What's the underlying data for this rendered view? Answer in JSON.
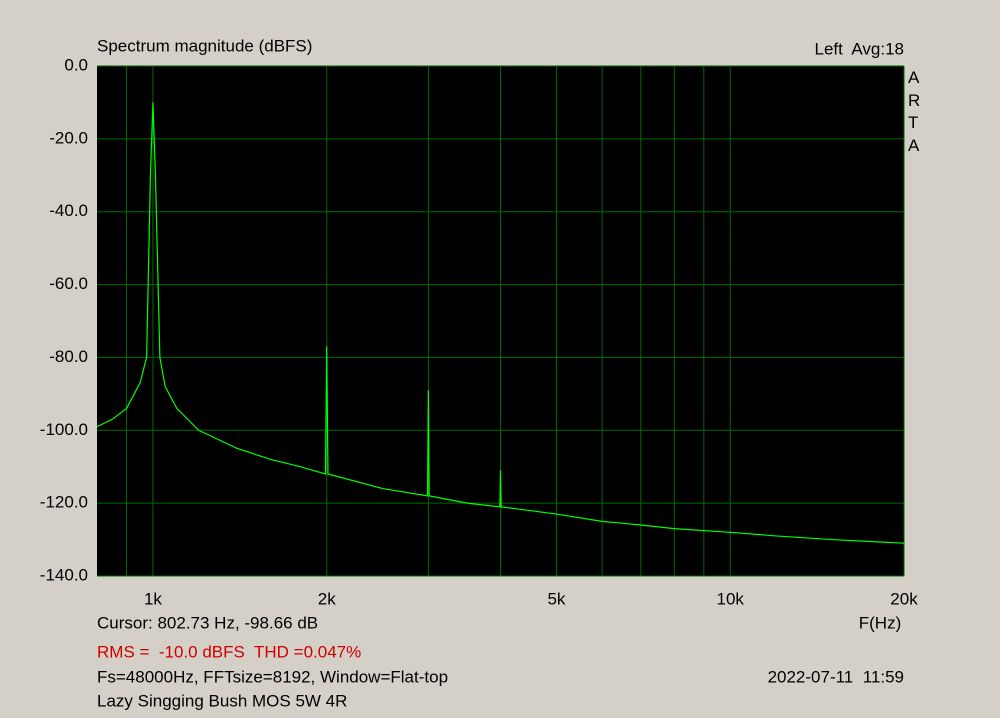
{
  "chart_data": {
    "type": "line",
    "title": "Spectrum magnitude (dBFS)",
    "channel": "Left  Avg:18",
    "brand": "ARTA",
    "xlabel": "F(Hz)",
    "cursor": "Cursor: 802.73 Hz, -98.66 dB",
    "measurement": "RMS =  -10.0 dBFS  THD =0.047%",
    "settings": "Fs=48000Hz, FFTsize=8192, Window=Flat-top",
    "timestamp": "2022-07-11  11:59",
    "device": "Lazy Singging Bush MOS 5W 4R",
    "xscale": "log",
    "grid": true,
    "color": "#00ff00",
    "xlim": [
      800,
      20000
    ],
    "ylim": [
      -140,
      0
    ],
    "xticks": [
      {
        "value": 1000,
        "label": "1k"
      },
      {
        "value": 2000,
        "label": "2k"
      },
      {
        "value": 5000,
        "label": "5k"
      },
      {
        "value": 10000,
        "label": "10k"
      },
      {
        "value": 20000,
        "label": "20k"
      }
    ],
    "xminor": [
      900,
      3000,
      4000,
      6000,
      7000,
      8000,
      9000
    ],
    "yticks": [
      {
        "value": 0,
        "label": "0.0"
      },
      {
        "value": -20,
        "label": "-20.0"
      },
      {
        "value": -40,
        "label": "-40.0"
      },
      {
        "value": -60,
        "label": "-60.0"
      },
      {
        "value": -80,
        "label": "-80.0"
      },
      {
        "value": -100,
        "label": "-100.0"
      },
      {
        "value": -120,
        "label": "-120.0"
      },
      {
        "value": -140,
        "label": "-140.0"
      }
    ],
    "x": [
      800,
      850,
      900,
      950,
      975,
      990,
      1000,
      1010,
      1028,
      1050,
      1100,
      1200,
      1400,
      1600,
      1800,
      1990,
      2000,
      2010,
      2500,
      2990,
      3000,
      3010,
      3500,
      3990,
      4000,
      4010,
      5000,
      6000,
      7000,
      8000,
      10000,
      12000,
      15000,
      20000
    ],
    "values": [
      -99,
      -97,
      -94,
      -87,
      -80,
      -30,
      -10,
      -30,
      -80,
      -88,
      -94,
      -100,
      -105,
      -108,
      -110,
      -112,
      -77,
      -112,
      -116,
      -118,
      -89,
      -118,
      -120,
      -121,
      -111,
      -121,
      -123,
      -125,
      -126,
      -127,
      -128,
      -129,
      -130,
      -131
    ]
  }
}
